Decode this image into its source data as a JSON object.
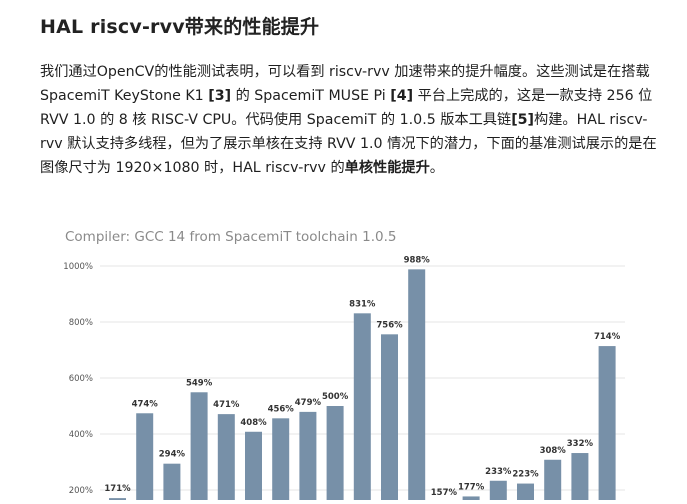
{
  "article": {
    "heading": "HAL riscv-rvv带来的性能提升",
    "p1": "我们通过OpenCV的性能测试表明，可以看到 riscv-rvv 加速带来的提升幅度。这些测试是在搭载 SpacemiT KeyStone K1 ",
    "ref3": "[3]",
    "p2": " 的 SpacemiT MUSE Pi ",
    "ref4": "[4]",
    "p3": " 平台上完成的，这是一款支持 256 位 RVV 1.0 的 8 核 RISC-V CPU。代码使用 SpacemiT 的 1.0.5 版本工具链",
    "ref5": "[5]",
    "p4": "构建。HAL riscv-rvv 默认支持多线程，但为了展示单核在支持 RVV 1.0 情况下的潜力，下面的基准测试展示的是在图像尺寸为 1920×1080 时，HAL riscv-rvv 的",
    "p5_bold": "单核性能提升",
    "p6": "。"
  },
  "chart_data": {
    "type": "bar",
    "title": "Compiler: GCC 14 from SpacemiT toolchain 1.0.5",
    "ylim": [
      200,
      1000
    ],
    "yticks": [
      200,
      400,
      600,
      800,
      1000
    ],
    "ytick_labels": [
      "200%",
      "400%",
      "600%",
      "800%",
      "1000%"
    ],
    "grid": true,
    "bar_color": "#7790a8",
    "values": [
      171,
      474,
      294,
      549,
      471,
      408,
      456,
      479,
      500,
      831,
      756,
      988,
      157,
      177,
      233,
      223,
      308,
      332,
      714
    ],
    "data_labels": [
      "171%",
      "474%",
      "294%",
      "549%",
      "471%",
      "408%",
      "456%",
      "479%",
      "500%",
      "831%",
      "756%",
      "988%",
      "157%",
      "177%",
      "233%",
      "223%",
      "308%",
      "332%",
      "714%"
    ]
  }
}
